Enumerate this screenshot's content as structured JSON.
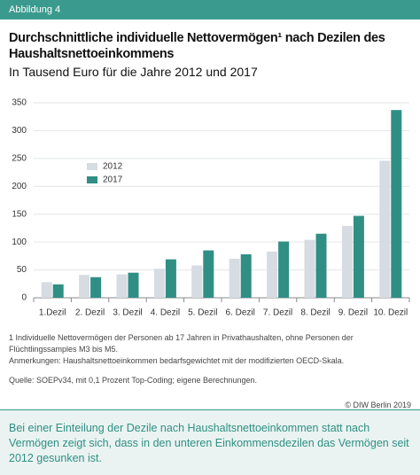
{
  "header": {
    "label": "Abbildung 4"
  },
  "chart_data": {
    "type": "bar",
    "title": "Durchschnittliche individuelle Nettovermögen¹ nach Dezilen des Haushaltsnettoeinkommens",
    "subtitle": "In Tausend Euro für die Jahre 2012 und 2017",
    "categories": [
      "1.Dezil",
      "2. Dezil",
      "3. Dezil",
      "4. Dezil",
      "5. Dezil",
      "6. Dezil",
      "7. Dezil",
      "8. Dezil",
      "9. Dezil",
      "10. Dezil"
    ],
    "series": [
      {
        "name": "2012",
        "color": "#d6dce1",
        "values": [
          28,
          41,
          42,
          52,
          58,
          70,
          83,
          104,
          129,
          246
        ]
      },
      {
        "name": "2017",
        "color": "#2f8f84",
        "values": [
          24,
          37,
          45,
          69,
          85,
          78,
          101,
          115,
          147,
          337
        ]
      }
    ],
    "ylim": [
      0,
      350
    ],
    "yticks": [
      0,
      50,
      100,
      150,
      200,
      250,
      300,
      350
    ],
    "grid": true
  },
  "notes": {
    "footnote": "1  Individuelle Nettovermögen der Personen ab 17 Jahren in Privathaushalten, ohne Personen der Flüchtlingssamples M3 bis M5.",
    "remarks": "Anmerkungen: Haushaltsnettoeinkommen bedarfsgewichtet mit der modifizierten OECD-Skala.",
    "source": "Quelle: SOEPv34, mit 0,1 Prozent Top-Coding; eigene Berechnungen.",
    "copyright": "© DIW Berlin 2019"
  },
  "summary": "Bei einer Einteilung der Dezile nach Haushaltsnettoeinkommen statt nach Vermögen zeigt sich, dass in den unteren Einkommensdezilen das Vermögen seit 2012 gesunken ist."
}
